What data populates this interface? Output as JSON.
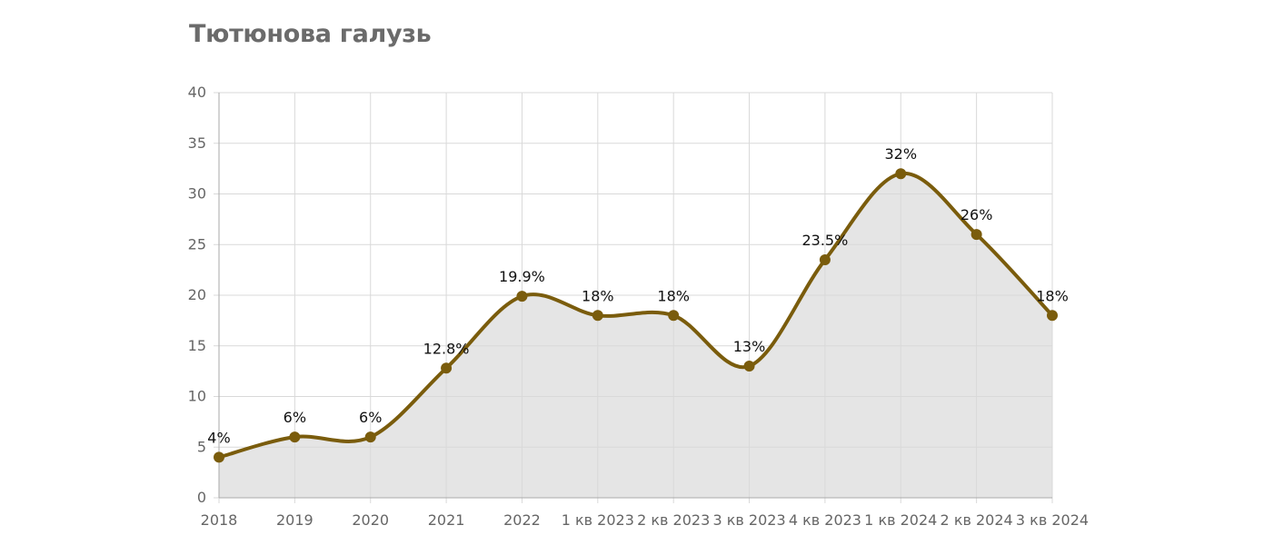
{
  "title": "Тютюнова галузь",
  "colors": {
    "line": "#7a5c0c",
    "area": "#e5e5e5",
    "grid": "#d9d9d9",
    "tick_text": "#666666",
    "title_text": "#6b6b6b"
  },
  "chart_data": {
    "type": "area",
    "title": "Тютюнова галузь",
    "xlabel": "",
    "ylabel": "",
    "categories": [
      "2018",
      "2019",
      "2020",
      "2021",
      "2022",
      "1 кв 2023",
      "2 кв 2023",
      "3 кв 2023",
      "4 кв 2023",
      "1 кв 2024",
      "2 кв 2024",
      "3 кв 2024"
    ],
    "series": [
      {
        "values": [
          4,
          6,
          6,
          12.8,
          19.9,
          18,
          18,
          13,
          23.5,
          32,
          26,
          18
        ],
        "labels": [
          "4%",
          "6%",
          "6%",
          "12.8%",
          "19.9%",
          "18%",
          "18%",
          "13%",
          "23.5%",
          "32%",
          "26%",
          "18%"
        ]
      }
    ],
    "ylim": [
      0,
      40
    ],
    "yticks": [
      "0",
      "5",
      "10",
      "15",
      "20",
      "25",
      "30",
      "35",
      "40"
    ],
    "grid": true,
    "smooth": true,
    "legend": "none"
  }
}
